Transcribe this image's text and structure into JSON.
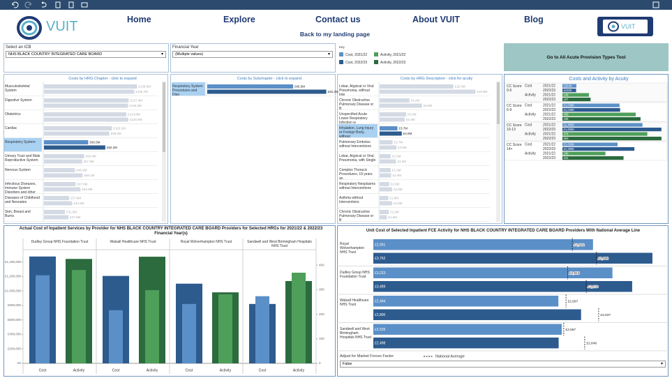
{
  "nav": {
    "logo": "VUIT",
    "button_logo": "VUIT",
    "items": [
      "Home",
      "Explore",
      "Contact us",
      "About VUIT",
      "Blog"
    ],
    "back_link": "Back to my landing page"
  },
  "filters": [
    {
      "label": "Select an ICB",
      "value": "NHS BLACK COUNTRY INTEGRATED CARE BOARD"
    },
    {
      "label": "Financial Year",
      "value": "(Multiple values)"
    }
  ],
  "key": {
    "title": "Key",
    "items": [
      {
        "name": "Cost, 2021/22",
        "color": "#5b8fc7"
      },
      {
        "name": "Activity, 2021/22",
        "color": "#4e9f5a"
      },
      {
        "name": "Cost, 2022/23",
        "color": "#2d5b8e"
      },
      {
        "name": "Activity, 2022/23",
        "color": "#2b6b3e"
      }
    ]
  },
  "tool_button": "Go to All Acute Provision Types Tool",
  "chart_data": [
    {
      "type": "bar",
      "title": "Costs by HRG Chapter - click to expand",
      "categories": [
        "Musculoskeletal System",
        "Digestive System",
        "Obstetrics",
        "Cardiac",
        "Respiratory System",
        "Urinary Tract and Male Reproductive System",
        "Nervous System",
        "Infectious Diseases, Immune System Disorders and other He..",
        "Diseases of Childhood and Neonates",
        "Skin, Breast and Burns"
      ],
      "selected_category": "Respiratory System",
      "inactive_color": "#d3dae4",
      "xlim": [
        0,
        150
      ],
      "series": [
        {
          "color": "#5b8fc7",
          "values": [
            139.9,
            127.4,
            123.8,
            102.2,
            66.5,
            60.4,
            46.6,
            47.6,
            37.9,
            31.6
          ],
          "value_labels": [
            "£139.9M",
            "£127.4M",
            "£123.8M",
            "£102.2M",
            "£66.5M",
            "£60.4M",
            "£46.6M",
            "£47.6M",
            "£37.9M",
            "£31.6M"
          ]
        },
        {
          "color": "#2d5b8e",
          "values": [
            135.7,
            126.3,
            126.9,
            98.2,
            92.2,
            57.3,
            58.1,
            54.9,
            42.5,
            37.0
          ],
          "value_labels": [
            "£135.7M",
            "£126.3M",
            "£126.9M",
            "£98.2M",
            "£92.2M",
            "£57.3M",
            "£58.1M",
            "£54.9M",
            "£42.5M",
            "£37.0M"
          ]
        }
      ]
    },
    {
      "type": "bar",
      "title": "Costs by Subchapter - click to expand",
      "categories": [
        "Respiratory System Procedures and Diso"
      ],
      "selected_category": "Respiratory System Procedures and Diso",
      "inactive_color": "#d3dae4",
      "xlim": [
        0,
        100
      ],
      "series": [
        {
          "color": "#5b8fc7",
          "values": [
            66.5
          ],
          "value_labels": [
            "£66.5M"
          ]
        },
        {
          "color": "#2d5b8e",
          "values": [
            92.2
          ],
          "value_labels": [
            "£92.2M"
          ]
        }
      ]
    },
    {
      "type": "bar",
      "title": "Costs by HRG Description - click for acuity",
      "categories": [
        "Lobar, Atypical or Viral Pneumonia, without Inte",
        "Chronic Obstructive Pulmonary Disease or B",
        "Unspecified Acute Lower Respiratory Infection w",
        "Inhalation, Lung Injury or Foreign Body, without",
        "Pulmonary Embolus without Interventions",
        "Lobar, Atypical or Viral Pneumonia, with Single",
        "Complex Thoracic Procedures, 19 years an",
        "Respiratory Neoplasms without Interventions",
        "Asthma without Interventions",
        "Chronic Obstructive Pulmonary Disease or B"
      ],
      "selected_category": "Inhalation, Lung Injury or Foreign Body, without",
      "inactive_color": "#d3dae4",
      "xlim": [
        0,
        20
      ],
      "series": [
        {
          "color": "#5b8fc7",
          "values": [
            15.3,
            6.2,
            5.5,
            3.7,
            2.7,
            2.3,
            2.3,
            2.0,
            1.8,
            1.9
          ],
          "value_labels": [
            "£15.3M",
            "£6.2M",
            "£5.5M",
            "£3.7M",
            "£2.7M",
            "£2.3M",
            "£2.3M",
            "£2.0M",
            "£1.8M",
            "£1.9M"
          ]
        },
        {
          "color": "#2d5b8e",
          "values": [
            19.9,
            8.8,
            5.2,
            4.6,
            3.5,
            3.4,
            2.4,
            2.6,
            2.6,
            1.5
          ],
          "value_labels": [
            "£19.9M",
            "£8.8M",
            "£5.2M",
            "£4.6M",
            "£3.5M",
            "£3.4M",
            "£2.4M",
            "£2.6M",
            "£2.6M",
            "£1.5M"
          ]
        }
      ]
    },
    {
      "type": "acuity",
      "title": "Costs and Activity by Acuity",
      "categories": [
        "CC Score 0-5",
        "CC Score 6-9",
        "CC Score 10-13",
        "CC Score 14+"
      ],
      "measures": [
        "Cost",
        "Activity"
      ],
      "years": [
        "2021/22",
        "2022/23"
      ],
      "xlim": [
        0,
        1840
      ],
      "x2lim": [
        0,
        565
      ],
      "cost": [
        {
          "color": "#5b8fc7",
          "values": [
            254,
            1038,
            1455,
            1003
          ],
          "value_labels": [
            "£254K",
            "£1,038K",
            "£1,455K",
            "£1,003K"
          ]
        },
        {
          "color": "#2d5b8e",
          "values": [
            248,
            1049,
            1800,
            1308
          ],
          "value_labels": [
            "£248K",
            "£1,049K",
            "£1,800K",
            "£1,308K"
          ]
        }
      ],
      "activity": [
        {
          "color": "#4e9f5a",
          "values": [
            148,
            409,
            474,
            240
          ]
        },
        {
          "color": "#2b6b3e",
          "values": [
            157,
            436,
            553,
            341
          ]
        }
      ]
    },
    {
      "type": "column",
      "title": "Actual Cost of Inpatient Services by Provider for NHS BLACK COUNTRY INTEGRATED CARE BOARD Providers for Selected HRGs for 2021/22 & 2022/23 Financial Year(s)",
      "categories": [
        "Dudley Group NHS Foundation Trust",
        "Walsall Healthcare NHS Trust",
        "Royal Wolverhampton NHS Trust",
        "Sandwell and West Birmingham Hospitals NHS Trust"
      ],
      "measures": [
        "Cost",
        "Activity"
      ],
      "ylim": [
        0,
        1550000
      ],
      "yticks": [
        {
          "value": 0,
          "label": "£0"
        },
        {
          "value": 200000,
          "label": "£200,000"
        },
        {
          "value": 400000,
          "label": "£400,000"
        },
        {
          "value": 600000,
          "label": "£600,000"
        },
        {
          "value": 800000,
          "label": "£800,000"
        },
        {
          "value": 1000000,
          "label": "£1,000,000"
        },
        {
          "value": 1200000,
          "label": "£1,200,000"
        },
        {
          "value": 1400000,
          "label": "£1,400,000"
        }
      ],
      "y2lim": [
        0,
        457
      ],
      "y2ticks": [
        0,
        100,
        200,
        300,
        400
      ],
      "series": [
        {
          "color": "#2d5b8e",
          "values": [
            1475000,
            1207000,
            1100000,
            820000
          ]
        },
        {
          "color": "#5b8fc7",
          "values": [
            1216000,
            734000,
            820000,
            927000
          ]
        },
        {
          "axis": "y2",
          "color": "#2b6b3e",
          "values": [
            425,
            434,
            289,
            335
          ]
        },
        {
          "axis": "y2",
          "color": "#4e9f5a",
          "values": [
            380,
            298,
            281,
            369
          ]
        }
      ]
    },
    {
      "type": "bullet",
      "title": "Unit Cost of Selected Inpatient FCE Activity for NHS BLACK COUNTRY INTEGRATED CARE BOARD Providers With National Average Line",
      "categories": [
        "Royal Wolverhampton NHS Trust",
        "Dudley Group NHS Foundation Trust",
        "Walsall Healthcare NHS Trust",
        "Sandwell and West Birmingham Hospitals NHS Trust"
      ],
      "xlim": [
        0,
        3800
      ],
      "series": [
        {
          "color": "#5b8fc7",
          "values": [
            2961,
            3223,
            2494,
            2539
          ],
          "value_labels": [
            "£2,961",
            "£3,223",
            "£2,494",
            "£2,539"
          ]
        },
        {
          "color": "#2d5b8e",
          "values": [
            3762,
            3489,
            2800,
            2498
          ],
          "value_labels": [
            "£3,762",
            "£3,489",
            "£2,800",
            "£2,498"
          ]
        }
      ],
      "reference": {
        "name": "National Average",
        "series": [
          {
            "values": [
              2682,
              2619,
              2597,
              2567
            ],
            "value_labels": [
              "£2,682",
              "£2,619",
              "£2,597",
              "£2,567"
            ]
          },
          {
            "values": [
              3008,
              2870,
              3037,
              2849
            ],
            "value_labels": [
              "£3,008",
              "£2,870",
              "£3,037",
              "£2,849"
            ]
          }
        ]
      },
      "filter_label": "Adjust for Market Forces Factor",
      "filter_value": "False"
    }
  ]
}
